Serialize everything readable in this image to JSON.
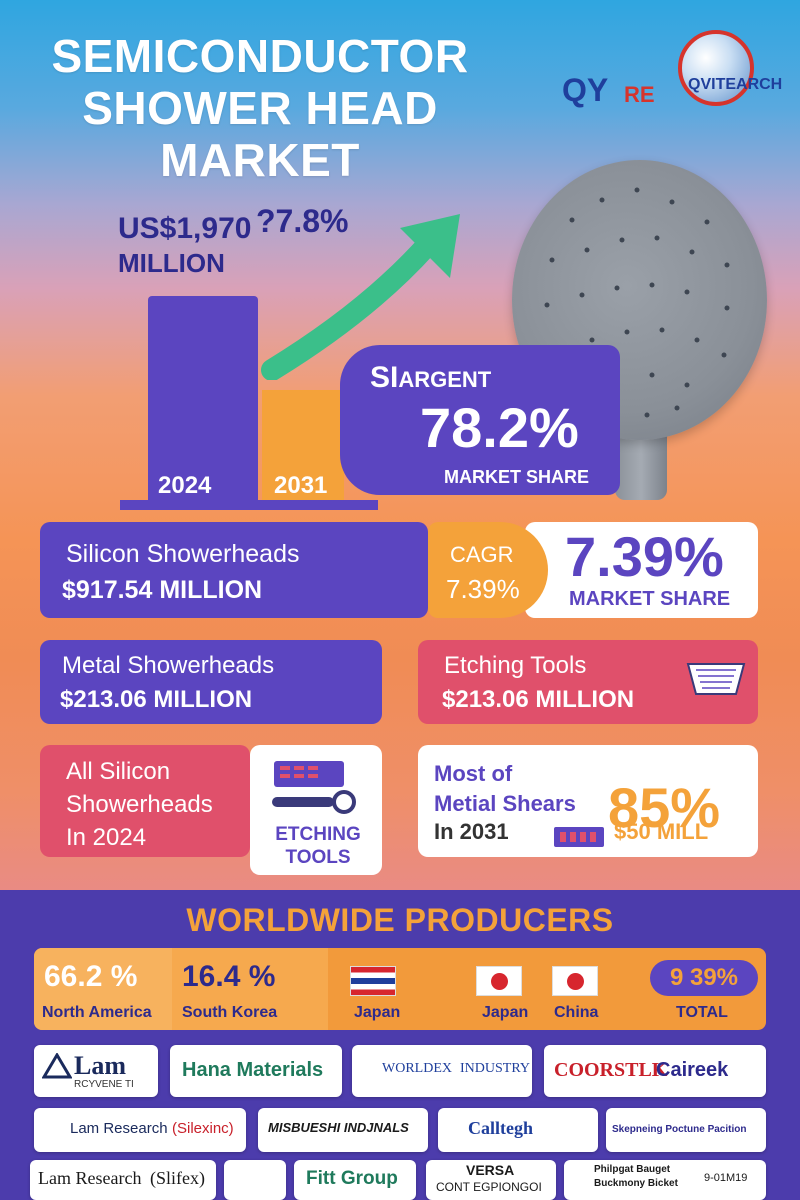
{
  "title": {
    "line1": "SEMICONDUCTOR",
    "line2": "SHOWER HEAD",
    "line3": "MARKET"
  },
  "logo": {
    "q": "QY",
    "re": "RE",
    "qv": "QVITEARCH"
  },
  "headline_stat": {
    "value": "US$1,970",
    "unit": "MILLION",
    "cagr": "?7.8%"
  },
  "bars": [
    {
      "label": "2024"
    },
    {
      "label": "2031"
    }
  ],
  "siargent": {
    "name_a": "SI",
    "name_b": "ARGENT",
    "share": "78.2%",
    "label": "MARKET SHARE"
  },
  "segments": {
    "silicon": {
      "name": "Silicon Showerheads",
      "value": "$917.54 MILLION"
    },
    "cagr": {
      "label": "CAGR",
      "value": "7.39%"
    },
    "share": {
      "value": "7.39%",
      "label": "MARKET SHARE"
    },
    "metal": {
      "name": "Metal Showerheads",
      "value": "$213.06 MILLION"
    },
    "etching": {
      "name": "Etching Tools",
      "value": "$213.06 MILLION"
    },
    "all_silicon": {
      "line1": "All Silicon",
      "line2": "Showerheads",
      "line3": "In 2024"
    },
    "etching_tools": {
      "line1": "ETCHING",
      "line2": "TOOLS"
    },
    "metal_shears": {
      "line1": "Most of",
      "line2": "Metial Shears",
      "line3": "In 2031",
      "pct": "85%",
      "mill": "$50 MILL"
    }
  },
  "producers": {
    "title": "WORLDWIDE PRODUCERS",
    "regions": [
      {
        "pct": "66.2 %",
        "name": "North America"
      },
      {
        "pct": "16.4 %",
        "name": "South Korea"
      },
      {
        "pct": "",
        "name": "Japan"
      },
      {
        "pct": "",
        "name": "Japan"
      },
      {
        "pct": "",
        "name": "China"
      }
    ],
    "total": {
      "pct": "9 39%",
      "name": "TOTAL"
    }
  },
  "companies": {
    "r1": [
      "Lam",
      "RCYVENE TI",
      "Hana Materials",
      "WORLDEX",
      "INDUSTRY",
      "COORSTLK",
      "Caireek"
    ],
    "r2": [
      "Lam Research",
      "(Silexinc)",
      "MISBUESHI INDJNALS",
      "Calltegh",
      "Skepneing Poctune Pacition"
    ],
    "r3": [
      "Lam Research",
      "(Slifex)",
      "Fitt Group",
      "VERSA",
      "CONT EGPIONGOI",
      "Philpgat Bauget",
      "Buckmony Bicket",
      "9-01M19"
    ]
  },
  "colors": {
    "purple": "#5b45c0",
    "orange": "#f4a23a",
    "pink": "#e0506b",
    "navy": "#2d2a8c",
    "green_arrow": "#3bbf8a"
  },
  "icons": [
    "shower-head-icon",
    "growth-arrow-icon",
    "etching-tool-icon",
    "chip-icon",
    "flag-icon",
    "globe-icon"
  ]
}
